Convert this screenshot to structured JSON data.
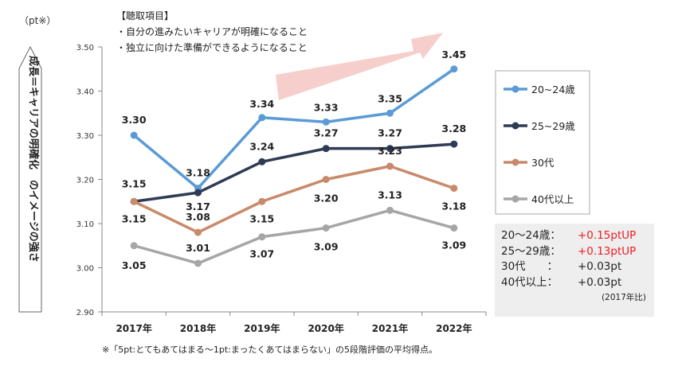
{
  "unit_label": "（pt※）",
  "vertical_label": "成長＝キャリアの明確化　のイメージの強さ",
  "items_box": {
    "title": "【聴取項目】",
    "lines": [
      "・自分の進みたいキャリアが明確になること",
      "・独立に向けた準備ができるようになること"
    ]
  },
  "footnote": "※「5pt:とてもあてはまる～1pt:まったくあてはまらない」の5段階評価の平均得点。",
  "colors": {
    "s1": "#5b9bd5",
    "s2": "#2f3a55",
    "s3": "#c88a6a",
    "s4": "#a6a6a6",
    "up_arrow": "#f4c7c3",
    "red": "#ee1c24"
  },
  "summary": {
    "rows": [
      {
        "label": "20～24歳：",
        "value": "+0.15ptUP",
        "red": true
      },
      {
        "label": "25～29歳：",
        "value": "+0.13ptUP",
        "red": true
      },
      {
        "label": "30代　　：",
        "value": "+0.03pt",
        "red": false
      },
      {
        "label": "40代以上：",
        "value": "+0.03pt",
        "red": false
      }
    ],
    "base_note": "(2017年比)"
  },
  "chart_data": {
    "type": "line",
    "title": "",
    "xlabel": "",
    "ylabel": "成長＝キャリアの明確化　のイメージの強さ",
    "categories": [
      "2017年",
      "2018年",
      "2019年",
      "2020年",
      "2021年",
      "2022年"
    ],
    "ylim": [
      2.9,
      3.5
    ],
    "yticks": [
      "2.90",
      "3.00",
      "3.10",
      "3.20",
      "3.30",
      "3.40",
      "3.50"
    ],
    "legend_position": "right",
    "series": [
      {
        "name": "20~24歳",
        "values": [
          3.3,
          3.18,
          3.34,
          3.33,
          3.35,
          3.45
        ],
        "labels": [
          "3.30",
          "3.18",
          "3.34",
          "3.33",
          "3.35",
          "3.45"
        ]
      },
      {
        "name": "25~29歳",
        "values": [
          3.15,
          3.17,
          3.24,
          3.27,
          3.27,
          3.28
        ],
        "labels": [
          "3.15",
          "3.17",
          "3.24",
          "3.27",
          "3.27",
          "3.28"
        ]
      },
      {
        "name": "30代",
        "values": [
          3.15,
          3.08,
          3.15,
          3.2,
          3.23,
          3.18
        ],
        "labels": [
          "3.15",
          "3.08",
          "3.15",
          "3.20",
          "3.23",
          "3.18"
        ]
      },
      {
        "name": "40代以上",
        "values": [
          3.05,
          3.01,
          3.07,
          3.09,
          3.13,
          3.09
        ],
        "labels": [
          "3.05",
          "3.01",
          "3.07",
          "3.09",
          "3.13",
          "3.09"
        ]
      }
    ]
  }
}
